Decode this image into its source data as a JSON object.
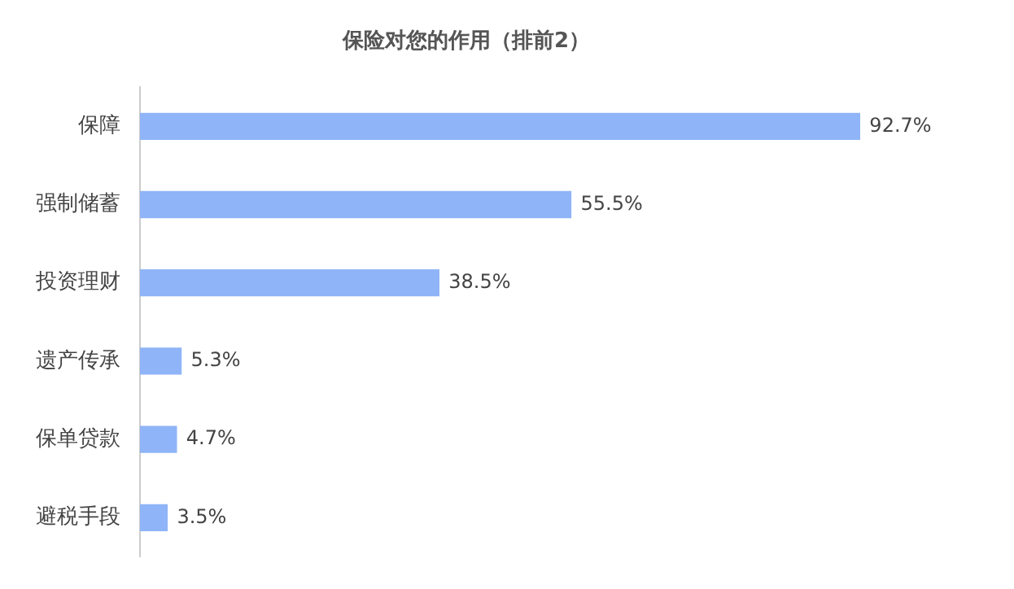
{
  "chart_data": {
    "type": "bar",
    "orientation": "horizontal",
    "title": "保险对您的作用（排前2）",
    "categories": [
      "保障",
      "强制储蓄",
      "投资理财",
      "遗产传承",
      "保单贷款",
      "避税手段"
    ],
    "values": [
      92.7,
      55.5,
      38.5,
      5.3,
      4.7,
      3.5
    ],
    "value_labels": [
      "92.7%",
      "55.5%",
      "38.5%",
      "5.3%",
      "4.7%",
      "3.5%"
    ],
    "color": "#8fb4f7",
    "grid": false,
    "legend": false,
    "tick_labels": "y"
  }
}
